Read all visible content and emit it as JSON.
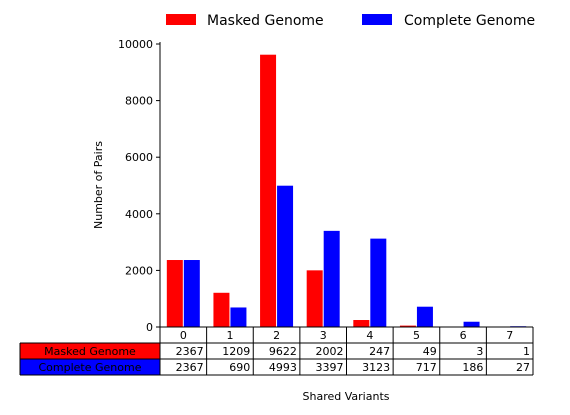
{
  "chart_data": {
    "type": "bar",
    "categories": [
      "0",
      "1",
      "2",
      "3",
      "4",
      "5",
      "6",
      "7"
    ],
    "series": [
      {
        "name": "Masked Genome",
        "values": [
          2367,
          1209,
          9622,
          2002,
          247,
          49,
          3,
          1
        ],
        "color": "#ff0000"
      },
      {
        "name": "Complete Genome",
        "values": [
          2367,
          690,
          4993,
          3397,
          3123,
          717,
          186,
          27
        ],
        "color": "#0000ff"
      }
    ],
    "ylabel": "Number of Pairs",
    "xlabel": "Shared Variants",
    "ylim": [
      0,
      10000
    ],
    "yticks": [
      0,
      2000,
      4000,
      6000,
      8000,
      10000
    ],
    "legend": "top",
    "table": true,
    "grid": false
  }
}
